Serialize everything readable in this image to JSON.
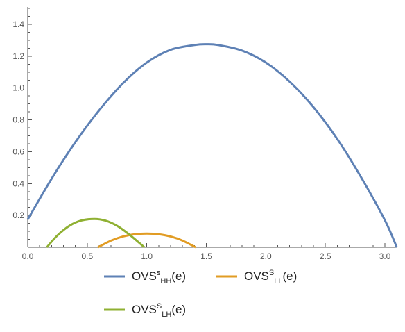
{
  "chart_data": {
    "type": "line",
    "title": "",
    "xlabel": "",
    "ylabel": "",
    "xlim": [
      0,
      3.14159
    ],
    "ylim": [
      0,
      1.5
    ],
    "x_ticks": [
      "0.0",
      "0.5",
      "1.0",
      "1.5",
      "2.0",
      "2.5",
      "3.0"
    ],
    "y_ticks": [
      "0.2",
      "0.4",
      "0.6",
      "0.8",
      "1.0",
      "1.2",
      "1.4"
    ],
    "grid": false,
    "legend_position": "bottom",
    "series": [
      {
        "name": "OVS^s_HH(e)",
        "legend_base": "OVS",
        "legend_sup": "s",
        "legend_sub": "HH",
        "legend_tail": "(e)",
        "color": "#5E81B5",
        "x": [
          0.0,
          0.2,
          0.4,
          0.6,
          0.8,
          1.0,
          1.2,
          1.4,
          1.5,
          1.6,
          1.8,
          2.0,
          2.2,
          2.4,
          2.6,
          2.8,
          3.0,
          3.1
        ],
        "y": [
          0.175,
          0.43,
          0.66,
          0.86,
          1.03,
          1.16,
          1.24,
          1.27,
          1.275,
          1.27,
          1.235,
          1.16,
          1.04,
          0.88,
          0.68,
          0.44,
          0.17,
          0.0
        ]
      },
      {
        "name": "OVS^S_LL(e)",
        "legend_base": "OVS",
        "legend_sup": "S",
        "legend_sub": "LL",
        "legend_tail": "(e)",
        "color": "#E19C24",
        "x": [
          0.59,
          0.7,
          0.8,
          0.9,
          1.0,
          1.1,
          1.2,
          1.3,
          1.41
        ],
        "y": [
          0.0,
          0.042,
          0.068,
          0.082,
          0.086,
          0.082,
          0.068,
          0.042,
          0.0
        ]
      },
      {
        "name": "OVS^S_LH(e)",
        "legend_base": "OVS",
        "legend_sup": "S",
        "legend_sub": "LH",
        "legend_tail": "(e)",
        "color": "#8FB032",
        "x": [
          0.16,
          0.25,
          0.35,
          0.45,
          0.56,
          0.65,
          0.75,
          0.85,
          0.98
        ],
        "y": [
          0.0,
          0.075,
          0.135,
          0.168,
          0.178,
          0.168,
          0.135,
          0.082,
          0.0
        ]
      }
    ]
  }
}
